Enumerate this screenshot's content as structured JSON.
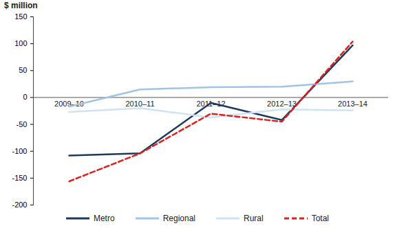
{
  "chart_data": {
    "type": "line",
    "y_label": "$ million",
    "categories": [
      "2009–10",
      "2010–11",
      "2011–12",
      "2012–13",
      "2013–14"
    ],
    "series": [
      {
        "name": "Metro",
        "color": "#1b3a5c",
        "line_style": "solid",
        "values": [
          -108,
          -104,
          -10,
          -42,
          97
        ]
      },
      {
        "name": "Regional",
        "color": "#9fc4e6",
        "line_style": "solid",
        "values": [
          -17,
          15,
          19,
          20,
          30
        ]
      },
      {
        "name": "Rural",
        "color": "#cfe3f4",
        "line_style": "solid",
        "values": [
          -27,
          -20,
          -37,
          -22,
          -24
        ]
      },
      {
        "name": "Total",
        "color": "#e0201f",
        "line_style": "dashed",
        "values": [
          -156,
          -104,
          -30,
          -45,
          104
        ]
      }
    ],
    "ylim": [
      -200,
      150
    ],
    "yticks": [
      -200,
      -150,
      -100,
      -50,
      0,
      50,
      100,
      150
    ],
    "grid": false,
    "legend": "bottom"
  }
}
